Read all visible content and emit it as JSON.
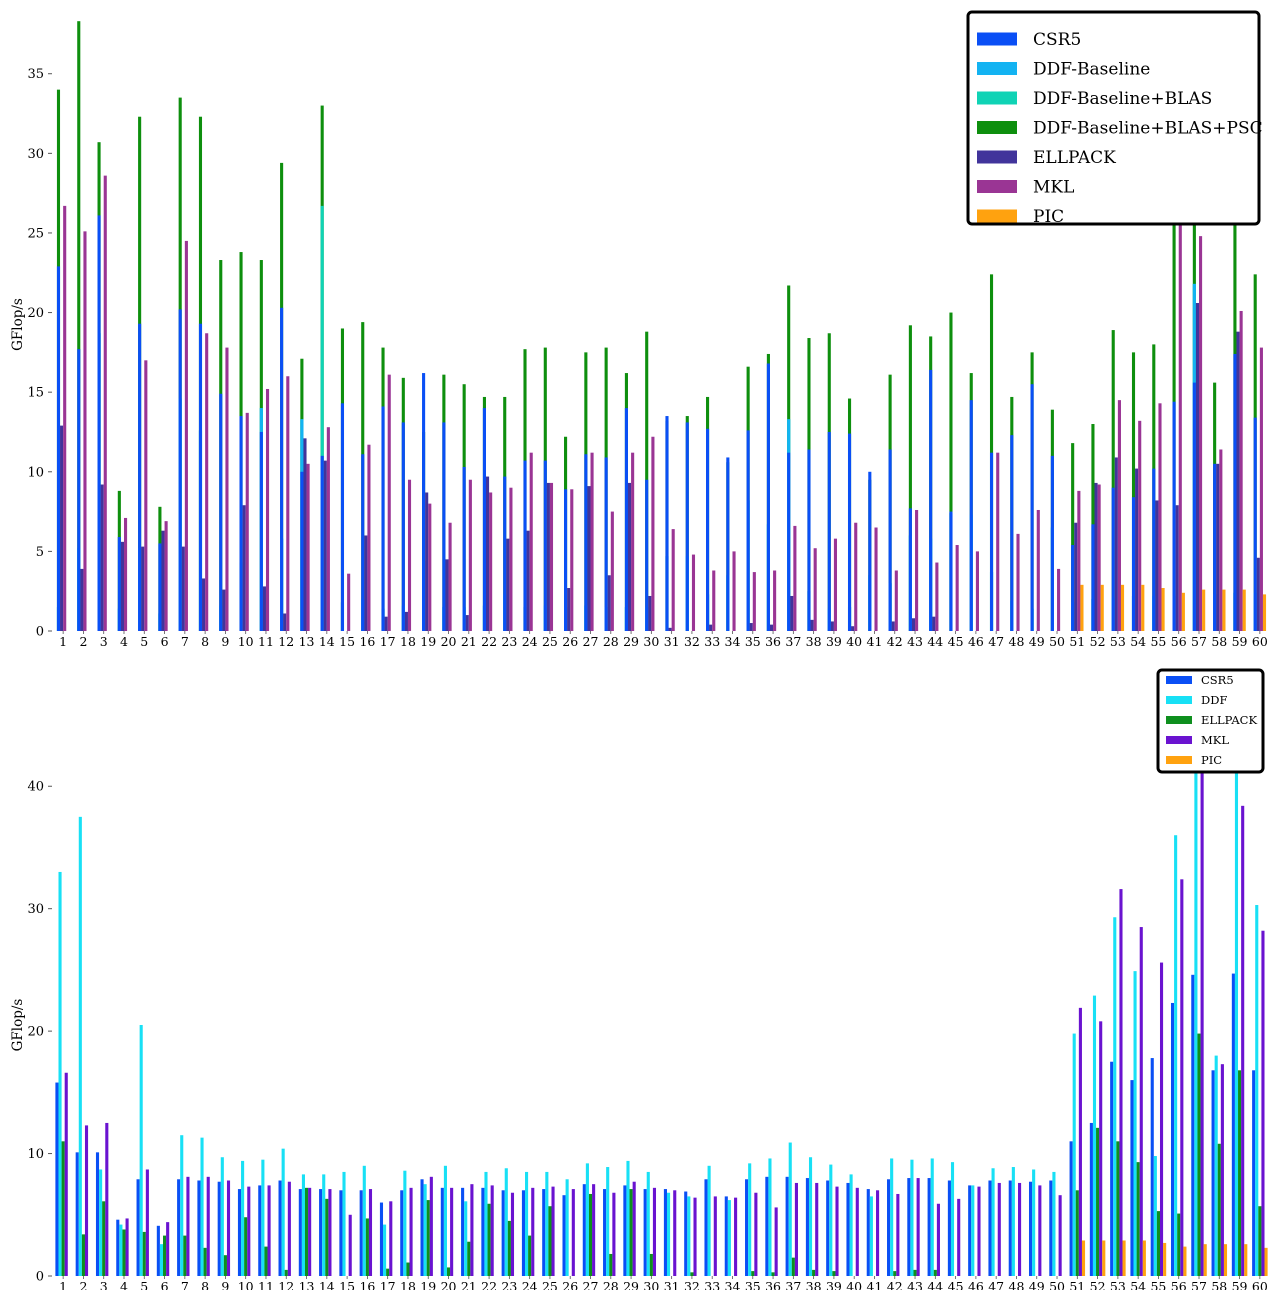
{
  "chart_data": [
    {
      "type": "bar",
      "stacked_overlay": true,
      "ylabel": "GFlop/s",
      "ylim": [
        0,
        38.5
      ],
      "yticks": [
        0,
        5,
        10,
        15,
        20,
        25,
        30,
        35
      ],
      "legend_position": "top-right",
      "categories": [
        "1",
        "2",
        "3",
        "4",
        "5",
        "6",
        "7",
        "8",
        "9",
        "10",
        "11",
        "12",
        "13",
        "14",
        "15",
        "16",
        "17",
        "18",
        "19",
        "20",
        "21",
        "22",
        "23",
        "24",
        "25",
        "26",
        "27",
        "28",
        "29",
        "30",
        "31",
        "32",
        "33",
        "34",
        "35",
        "36",
        "37",
        "38",
        "39",
        "40",
        "41",
        "42",
        "43",
        "44",
        "45",
        "46",
        "47",
        "48",
        "49",
        "50",
        "51",
        "52",
        "53",
        "54",
        "55",
        "56",
        "57",
        "58",
        "59",
        "60"
      ],
      "series": [
        {
          "name": "CSR5",
          "color": "#0a4ff5",
          "values": [
            22.9,
            17.7,
            26.1,
            5.9,
            19.3,
            5.5,
            20.2,
            19.3,
            14.9,
            13.5,
            12.5,
            20.3,
            10.0,
            11.0,
            14.3,
            11.1,
            14.1,
            13.1,
            16.2,
            13.1,
            10.3,
            14.0,
            9.7,
            10.7,
            10.7,
            8.9,
            11.1,
            10.9,
            14.0,
            9.5,
            13.5,
            13.1,
            12.7,
            10.9,
            12.6,
            16.8,
            11.2,
            11.4,
            12.5,
            12.4,
            10.0,
            11.4,
            7.7,
            16.4,
            7.5,
            14.5,
            11.2,
            12.3,
            15.5,
            11.0,
            5.4,
            6.7,
            9.0,
            8.4,
            10.2,
            14.4,
            15.6,
            10.5,
            17.4,
            13.4
          ]
        },
        {
          "name": "DDF-Baseline",
          "color": "#13b3f2",
          "values": [
            1.5,
            5.2,
            18.7,
            1.4,
            5.2,
            1.1,
            14.6,
            12.6,
            1.6,
            4.3,
            14.0,
            5.8,
            13.3,
            10.4,
            1.8,
            2.0,
            1.4,
            1.6,
            4.4,
            1.5,
            1.5,
            1.6,
            2.3,
            1.5,
            1.6,
            1.5,
            1.6,
            1.5,
            1.5,
            1.5,
            4.7,
            4.7,
            2.3,
            3.5,
            8.2,
            6.7,
            13.3,
            2.5,
            1.4,
            1.5,
            3.5,
            3.0,
            6.0,
            5.8,
            7.4,
            7.3,
            3.7,
            1.9,
            1.4,
            6.5,
            1.8,
            2.0,
            2.1,
            2.2,
            2.2,
            2.2,
            21.8,
            2.3,
            2.4,
            2.4
          ]
        },
        {
          "name": "DDF-Baseline+BLAS",
          "color": "#10d3b5",
          "values": [
            1.5,
            5.2,
            18.7,
            1.4,
            5.2,
            1.1,
            14.6,
            12.6,
            1.6,
            4.3,
            14.0,
            5.8,
            13.3,
            26.7,
            1.8,
            2.0,
            1.4,
            1.6,
            4.4,
            1.5,
            1.5,
            1.6,
            2.3,
            1.5,
            1.6,
            1.5,
            1.6,
            1.5,
            1.5,
            1.5,
            4.7,
            4.7,
            2.3,
            3.5,
            8.2,
            6.7,
            13.3,
            2.5,
            1.4,
            1.5,
            3.5,
            3.0,
            6.0,
            5.8,
            7.4,
            7.3,
            3.7,
            1.9,
            1.4,
            6.5,
            1.8,
            2.0,
            2.1,
            2.2,
            2.2,
            2.2,
            21.8,
            2.3,
            2.4,
            2.4
          ]
        },
        {
          "name": "DDF-Baseline+BLAS+PSC",
          "color": "#0e8f0e",
          "values": [
            34.0,
            38.3,
            30.7,
            8.8,
            32.3,
            7.8,
            33.5,
            32.3,
            23.3,
            23.8,
            23.3,
            29.4,
            17.1,
            33.0,
            19.0,
            19.4,
            17.8,
            15.9,
            12.5,
            16.1,
            15.5,
            14.7,
            14.7,
            17.7,
            17.8,
            12.2,
            17.5,
            17.8,
            16.2,
            18.8,
            13.2,
            13.5,
            14.7,
            10.6,
            16.6,
            17.4,
            21.7,
            18.4,
            18.7,
            14.6,
            9.5,
            16.1,
            19.2,
            18.5,
            20.0,
            16.2,
            22.4,
            14.7,
            17.5,
            13.9,
            11.8,
            13.0,
            18.9,
            17.5,
            18.0,
            26.5,
            26.0,
            15.6,
            26.0,
            22.4
          ]
        },
        {
          "name": "ELLPACK",
          "color": "#41349b",
          "values": [
            12.9,
            3.9,
            9.2,
            5.6,
            5.3,
            6.3,
            5.3,
            3.3,
            2.6,
            7.9,
            2.8,
            1.1,
            12.1,
            10.7,
            0.0,
            6.0,
            0.9,
            1.2,
            8.7,
            4.5,
            1.0,
            9.7,
            5.8,
            6.3,
            9.3,
            2.7,
            9.1,
            3.5,
            9.3,
            2.2,
            0.2,
            0.0,
            0.4,
            0.0,
            0.5,
            0.4,
            2.2,
            0.7,
            0.6,
            0.3,
            0.0,
            0.6,
            0.8,
            0.9,
            0.0,
            0.0,
            0.0,
            0.0,
            0.0,
            0.0,
            6.8,
            9.3,
            10.9,
            10.2,
            8.2,
            7.9,
            20.6,
            10.5,
            18.8,
            4.6
          ]
        },
        {
          "name": "MKL",
          "color": "#9a3594",
          "values": [
            26.7,
            25.1,
            28.6,
            7.1,
            17.0,
            6.9,
            24.5,
            18.7,
            17.8,
            13.7,
            15.2,
            16.0,
            10.5,
            12.8,
            3.6,
            11.7,
            16.1,
            9.5,
            8.0,
            6.8,
            9.5,
            8.7,
            9.0,
            11.2,
            9.3,
            8.9,
            11.2,
            7.5,
            11.2,
            12.2,
            6.4,
            4.8,
            3.8,
            5.0,
            3.7,
            3.8,
            6.6,
            5.2,
            5.8,
            6.8,
            6.5,
            3.8,
            7.6,
            4.3,
            5.4,
            5.0,
            11.2,
            6.1,
            7.6,
            3.9,
            8.8,
            9.2,
            14.5,
            13.2,
            14.3,
            28.5,
            24.8,
            11.4,
            20.1,
            17.8
          ]
        },
        {
          "name": "PIC",
          "color": "#ffa20f",
          "values": [
            0,
            0,
            0,
            0,
            0,
            0,
            0,
            0,
            0,
            0,
            0,
            0,
            0,
            0,
            0,
            0,
            0,
            0,
            0,
            0,
            0,
            0,
            0,
            0,
            0,
            0,
            0,
            0,
            0,
            0,
            0,
            0,
            0,
            0,
            0,
            0,
            0,
            0,
            0,
            0,
            0,
            0,
            0,
            0,
            0,
            0,
            0,
            0,
            0,
            0,
            2.9,
            2.9,
            2.9,
            2.9,
            2.7,
            2.4,
            2.6,
            2.6,
            2.6,
            2.3
          ]
        }
      ]
    },
    {
      "type": "bar",
      "ylabel": "GFlop/s",
      "ylim": [
        0,
        41
      ],
      "yticks": [
        0,
        10,
        20,
        30,
        40
      ],
      "legend_position": "top-right",
      "categories": [
        "1",
        "2",
        "3",
        "4",
        "5",
        "6",
        "7",
        "8",
        "9",
        "10",
        "11",
        "12",
        "13",
        "14",
        "15",
        "16",
        "17",
        "18",
        "19",
        "20",
        "21",
        "22",
        "23",
        "24",
        "25",
        "26",
        "27",
        "28",
        "29",
        "30",
        "31",
        "32",
        "33",
        "34",
        "35",
        "36",
        "37",
        "38",
        "39",
        "40",
        "41",
        "42",
        "43",
        "44",
        "45",
        "46",
        "47",
        "48",
        "49",
        "50",
        "51",
        "52",
        "53",
        "54",
        "55",
        "56",
        "57",
        "58",
        "59",
        "60"
      ],
      "series": [
        {
          "name": "CSR5",
          "color": "#0a4ff5",
          "values": [
            15.8,
            10.1,
            10.1,
            4.6,
            7.9,
            4.1,
            7.9,
            7.8,
            7.7,
            7.1,
            7.4,
            7.8,
            7.1,
            7.1,
            7.0,
            7.0,
            6.0,
            7.0,
            7.9,
            7.2,
            7.2,
            7.2,
            7.0,
            7.0,
            7.1,
            6.6,
            7.5,
            7.1,
            7.4,
            7.1,
            7.1,
            6.9,
            7.9,
            6.5,
            7.9,
            8.1,
            8.1,
            8.0,
            7.8,
            7.6,
            7.1,
            7.9,
            8.0,
            8.0,
            7.8,
            7.4,
            7.8,
            7.8,
            7.7,
            7.8,
            11.0,
            12.5,
            17.5,
            16.0,
            17.8,
            22.3,
            24.6,
            16.8,
            24.7,
            16.8
          ]
        },
        {
          "name": "DDF",
          "color": "#18e0f5",
          "values": [
            33.0,
            37.5,
            8.7,
            4.2,
            20.5,
            2.6,
            11.5,
            11.3,
            9.7,
            9.4,
            9.5,
            10.4,
            8.3,
            8.3,
            8.5,
            9.0,
            4.2,
            8.6,
            7.5,
            9.0,
            6.1,
            8.5,
            8.8,
            8.5,
            8.5,
            7.9,
            9.2,
            8.9,
            9.4,
            8.5,
            6.8,
            6.5,
            9.0,
            6.2,
            9.2,
            9.6,
            10.9,
            9.7,
            9.1,
            8.3,
            6.5,
            9.6,
            9.5,
            9.6,
            9.3,
            7.4,
            8.8,
            8.9,
            8.7,
            8.5,
            19.8,
            22.9,
            29.3,
            24.9,
            9.8,
            36.0,
            41.5,
            18.0,
            41.5,
            30.3
          ]
        },
        {
          "name": "ELLPACK",
          "color": "#0e8f1e",
          "values": [
            11.0,
            3.4,
            6.1,
            3.8,
            3.6,
            3.3,
            3.3,
            2.3,
            1.7,
            4.8,
            2.4,
            0.5,
            7.2,
            6.3,
            0.0,
            4.7,
            0.6,
            1.1,
            6.2,
            0.7,
            2.8,
            5.9,
            4.5,
            3.3,
            5.7,
            0.0,
            6.7,
            1.8,
            7.1,
            1.8,
            0.0,
            0.3,
            0.0,
            0.0,
            0.4,
            0.3,
            1.5,
            0.5,
            0.4,
            0.0,
            0.0,
            0.4,
            0.5,
            0.5,
            0.0,
            0.0,
            0.0,
            0.0,
            0.0,
            0.0,
            7.0,
            12.1,
            11.0,
            9.3,
            5.3,
            5.1,
            19.8,
            10.8,
            16.8,
            5.7
          ]
        },
        {
          "name": "MKL",
          "color": "#6a13d0",
          "values": [
            16.6,
            12.3,
            12.5,
            4.7,
            8.7,
            4.4,
            8.1,
            8.1,
            7.8,
            7.3,
            7.4,
            7.7,
            7.2,
            7.1,
            5.0,
            7.1,
            6.1,
            7.2,
            8.1,
            7.2,
            7.5,
            7.4,
            6.8,
            7.2,
            7.3,
            7.1,
            7.5,
            6.8,
            7.7,
            7.2,
            7.0,
            6.4,
            6.5,
            6.4,
            6.8,
            5.6,
            7.6,
            7.6,
            7.3,
            7.2,
            7.0,
            6.7,
            8.0,
            5.9,
            6.3,
            7.3,
            7.6,
            7.6,
            7.4,
            6.6,
            21.9,
            20.8,
            31.6,
            28.5,
            25.6,
            32.4,
            41.5,
            17.3,
            38.4,
            28.2
          ]
        },
        {
          "name": "PIC",
          "color": "#ffa20f",
          "values": [
            0,
            0,
            0,
            0,
            0,
            0,
            0,
            0,
            0,
            0,
            0,
            0,
            0,
            0,
            0,
            0,
            0,
            0,
            0,
            0,
            0,
            0,
            0,
            0,
            0,
            0,
            0,
            0,
            0,
            0,
            0,
            0,
            0,
            0,
            0,
            0,
            0,
            0,
            0,
            0,
            0,
            0,
            0,
            0,
            0,
            0,
            0,
            0,
            0,
            0,
            2.9,
            2.9,
            2.9,
            2.9,
            2.7,
            2.4,
            2.6,
            2.6,
            2.6,
            2.3
          ]
        }
      ]
    }
  ]
}
